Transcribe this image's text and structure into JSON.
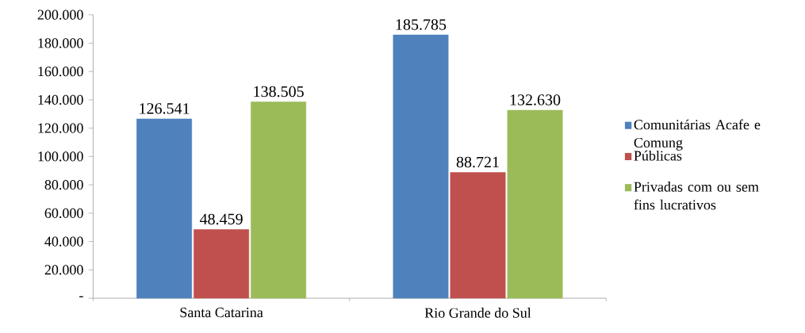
{
  "chart_data": {
    "type": "bar",
    "categories": [
      "Santa Catarina",
      "Rio Grande do Sul"
    ],
    "series": [
      {
        "name": "Comunitárias Acafe e Comung",
        "color": "#4f81bd",
        "values": [
          126541,
          185785
        ],
        "value_labels": [
          "126.541",
          "185.785"
        ]
      },
      {
        "name": "Públicas",
        "color": "#c0504d",
        "values": [
          48459,
          88721
        ],
        "value_labels": [
          "48.459",
          "88.721"
        ]
      },
      {
        "name": "Privadas com ou sem fins lucrativos",
        "color": "#9bbb59",
        "values": [
          138505,
          132630
        ],
        "value_labels": [
          "138.505",
          "132.630"
        ]
      }
    ],
    "ylim": [
      0,
      200000
    ],
    "yticks": [
      {
        "value": 0,
        "label": "-"
      },
      {
        "value": 20000,
        "label": "20.000"
      },
      {
        "value": 40000,
        "label": "40.000"
      },
      {
        "value": 60000,
        "label": "60.000"
      },
      {
        "value": 80000,
        "label": "80.000"
      },
      {
        "value": 100000,
        "label": "100.000"
      },
      {
        "value": 120000,
        "label": "120.000"
      },
      {
        "value": 140000,
        "label": "140.000"
      },
      {
        "value": 160000,
        "label": "160.000"
      },
      {
        "value": 180000,
        "label": "180.000"
      },
      {
        "value": 200000,
        "label": "200.000"
      }
    ],
    "grid": false,
    "legend": "right"
  }
}
